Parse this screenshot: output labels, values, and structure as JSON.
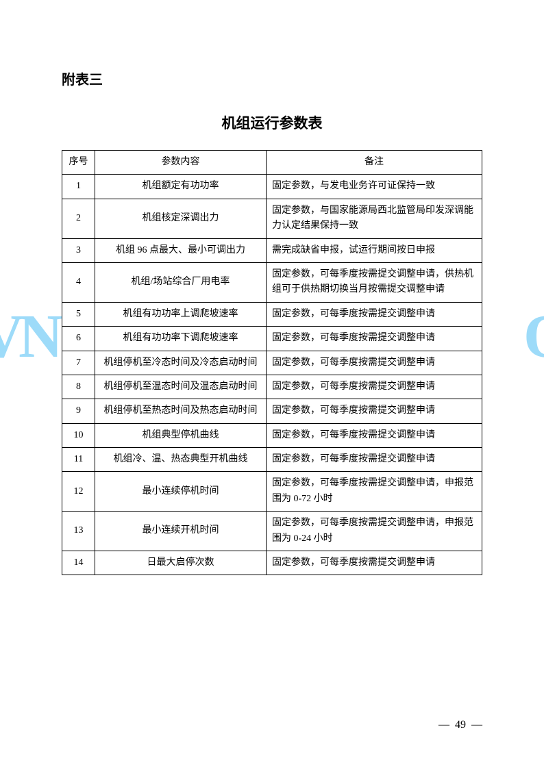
{
  "watermark": {
    "left": "VN",
    "right": "O"
  },
  "section_label": "附表三",
  "page_title": "机组运行参数表",
  "table": {
    "headers": {
      "seq": "序号",
      "param": "参数内容",
      "remark": "备注"
    },
    "rows": [
      {
        "seq": "1",
        "param": "机组额定有功功率",
        "remark": "固定参数，与发电业务许可证保持一致"
      },
      {
        "seq": "2",
        "param": "机组核定深调出力",
        "remark": "固定参数，与国家能源局西北监管局印发深调能力认定结果保持一致"
      },
      {
        "seq": "3",
        "param": "机组 96 点最大、最小可调出力",
        "remark": "需完成缺省申报，试运行期间按日申报"
      },
      {
        "seq": "4",
        "param": "机组/场站综合厂用电率",
        "remark": "固定参数，可每季度按需提交调整申请，供热机组可于供热期切换当月按需提交调整申请"
      },
      {
        "seq": "5",
        "param": "机组有功功率上调爬坡速率",
        "remark": "固定参数，可每季度按需提交调整申请"
      },
      {
        "seq": "6",
        "param": "机组有功功率下调爬坡速率",
        "remark": "固定参数，可每季度按需提交调整申请"
      },
      {
        "seq": "7",
        "param": "机组停机至冷态时间及冷态启动时间",
        "remark": "固定参数，可每季度按需提交调整申请"
      },
      {
        "seq": "8",
        "param": "机组停机至温态时间及温态启动时间",
        "remark": "固定参数，可每季度按需提交调整申请"
      },
      {
        "seq": "9",
        "param": "机组停机至热态时间及热态启动时间",
        "remark": "固定参数，可每季度按需提交调整申请"
      },
      {
        "seq": "10",
        "param": "机组典型停机曲线",
        "remark": "固定参数，可每季度按需提交调整申请"
      },
      {
        "seq": "11",
        "param": "机组冷、温、热态典型开机曲线",
        "remark": "固定参数，可每季度按需提交调整申请"
      },
      {
        "seq": "12",
        "param": "最小连续停机时间",
        "remark": "固定参数，可每季度按需提交调整申请，申报范围为 0-72 小时"
      },
      {
        "seq": "13",
        "param": "最小连续开机时间",
        "remark": "固定参数，可每季度按需提交调整申请，申报范围为 0-24 小时"
      },
      {
        "seq": "14",
        "param": "日最大启停次数",
        "remark": "固定参数，可每季度按需提交调整申请"
      }
    ]
  },
  "footer": {
    "page_number": "49",
    "dash": "—"
  }
}
